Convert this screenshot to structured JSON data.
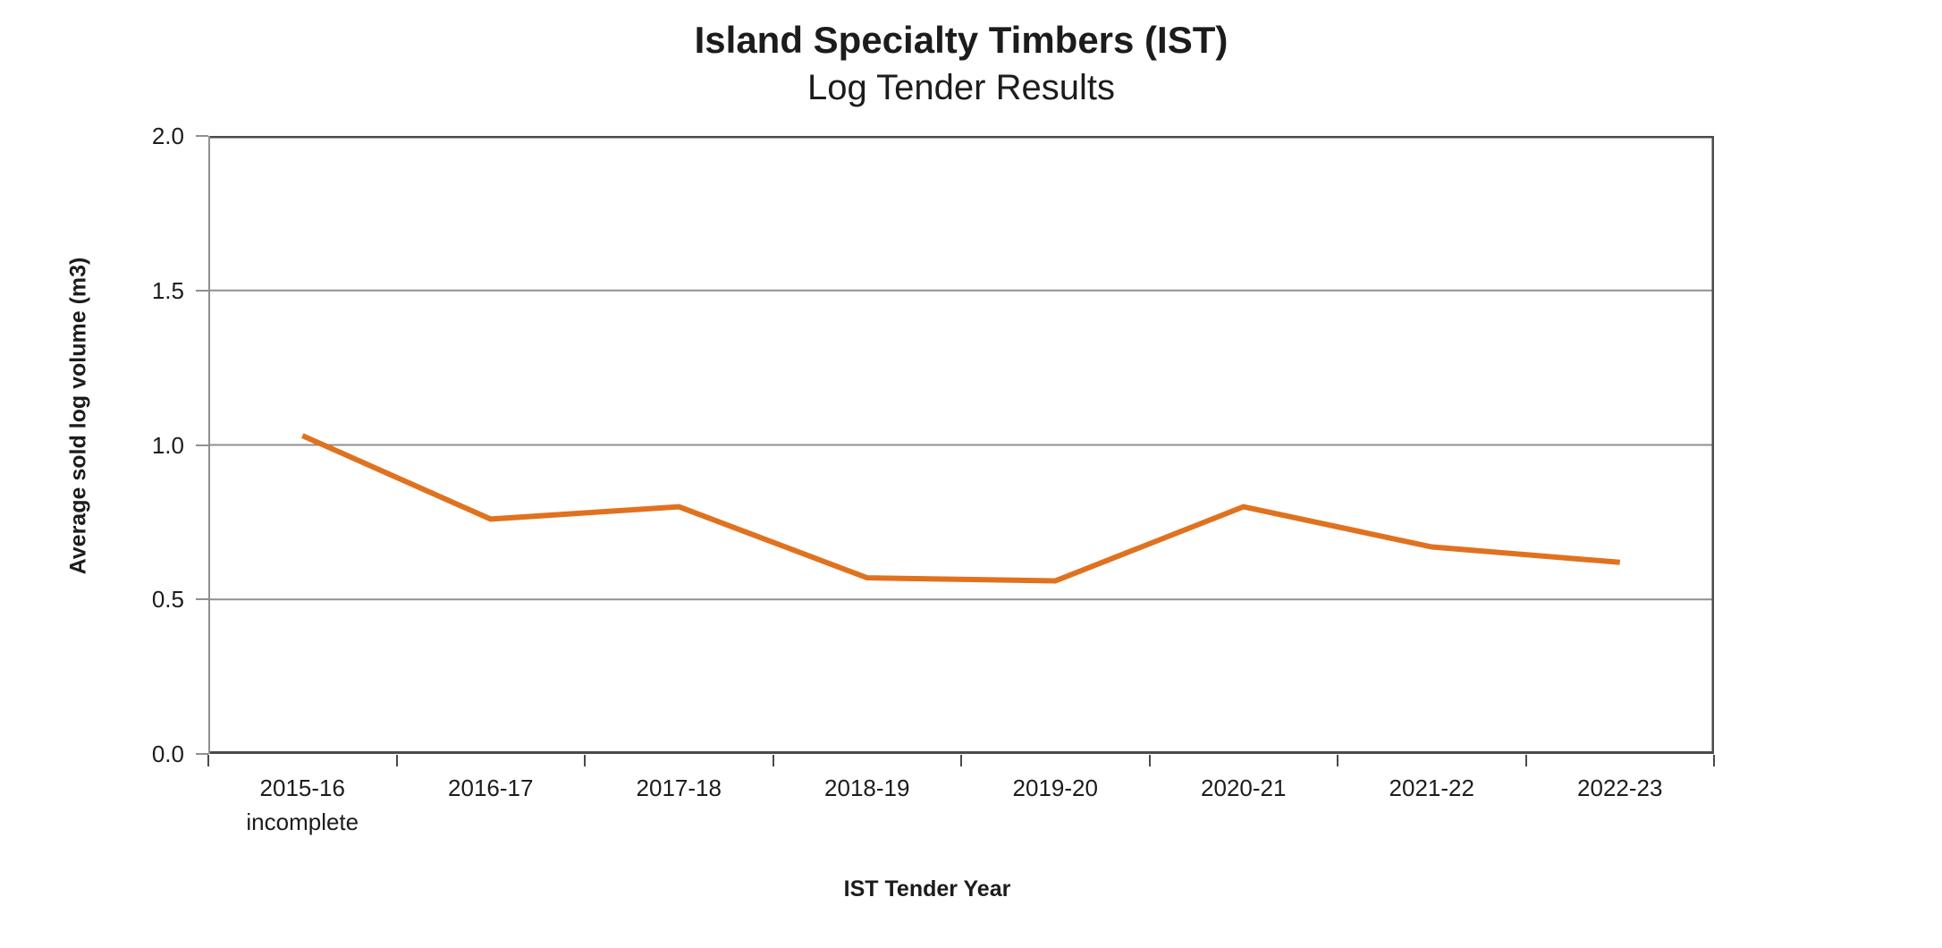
{
  "chart_data": {
    "type": "line",
    "title": "Island Specialty Timbers (IST)",
    "subtitle": "Log Tender Results",
    "xlabel": "IST Tender Year",
    "ylabel": "Average sold log volume (m3)",
    "categories": [
      "2015-16 incomplete",
      "2016-17",
      "2017-18",
      "2018-19",
      "2019-20",
      "2020-21",
      "2021-22",
      "2022-23"
    ],
    "x_tick_lines": [
      [
        "2015-16",
        "incomplete"
      ],
      [
        "2016-17"
      ],
      [
        "2017-18"
      ],
      [
        "2018-19"
      ],
      [
        "2019-20"
      ],
      [
        "2020-21"
      ],
      [
        "2021-22"
      ],
      [
        "2022-23"
      ]
    ],
    "values": [
      1.03,
      0.76,
      0.8,
      0.57,
      0.56,
      0.8,
      0.67,
      0.62
    ],
    "ylim": [
      0,
      2.0
    ],
    "y_ticks": [
      "2.0",
      "1.5",
      "1.0",
      "0.5",
      "0.0"
    ],
    "grid": true,
    "legend": "none",
    "colors": {
      "line": "#E0721F",
      "gridline": "#8F8F8F",
      "axis_dark": "#4A4A4A",
      "axis_left": "#8F8F8F",
      "text": "#1C1C1C"
    }
  }
}
